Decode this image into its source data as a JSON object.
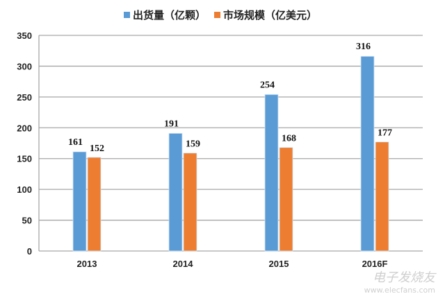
{
  "chart_data": {
    "type": "bar",
    "categories": [
      "2013",
      "2014",
      "2015",
      "2016F"
    ],
    "series": [
      {
        "name": "出货量（亿颗）",
        "values": [
          161,
          191,
          254,
          316
        ],
        "color": "#5B9BD5"
      },
      {
        "name": "市场规模（亿美元）",
        "values": [
          152,
          159,
          168,
          177
        ],
        "color": "#ED7D31"
      }
    ],
    "ylim": [
      0,
      350
    ],
    "yticks": [
      0,
      50,
      100,
      150,
      200,
      250,
      300,
      350
    ],
    "grid": "horizontal",
    "legend_position": "top",
    "data_labels": true
  },
  "watermark": {
    "cn": "电子发烧友",
    "url": "www.elecfans.com"
  }
}
